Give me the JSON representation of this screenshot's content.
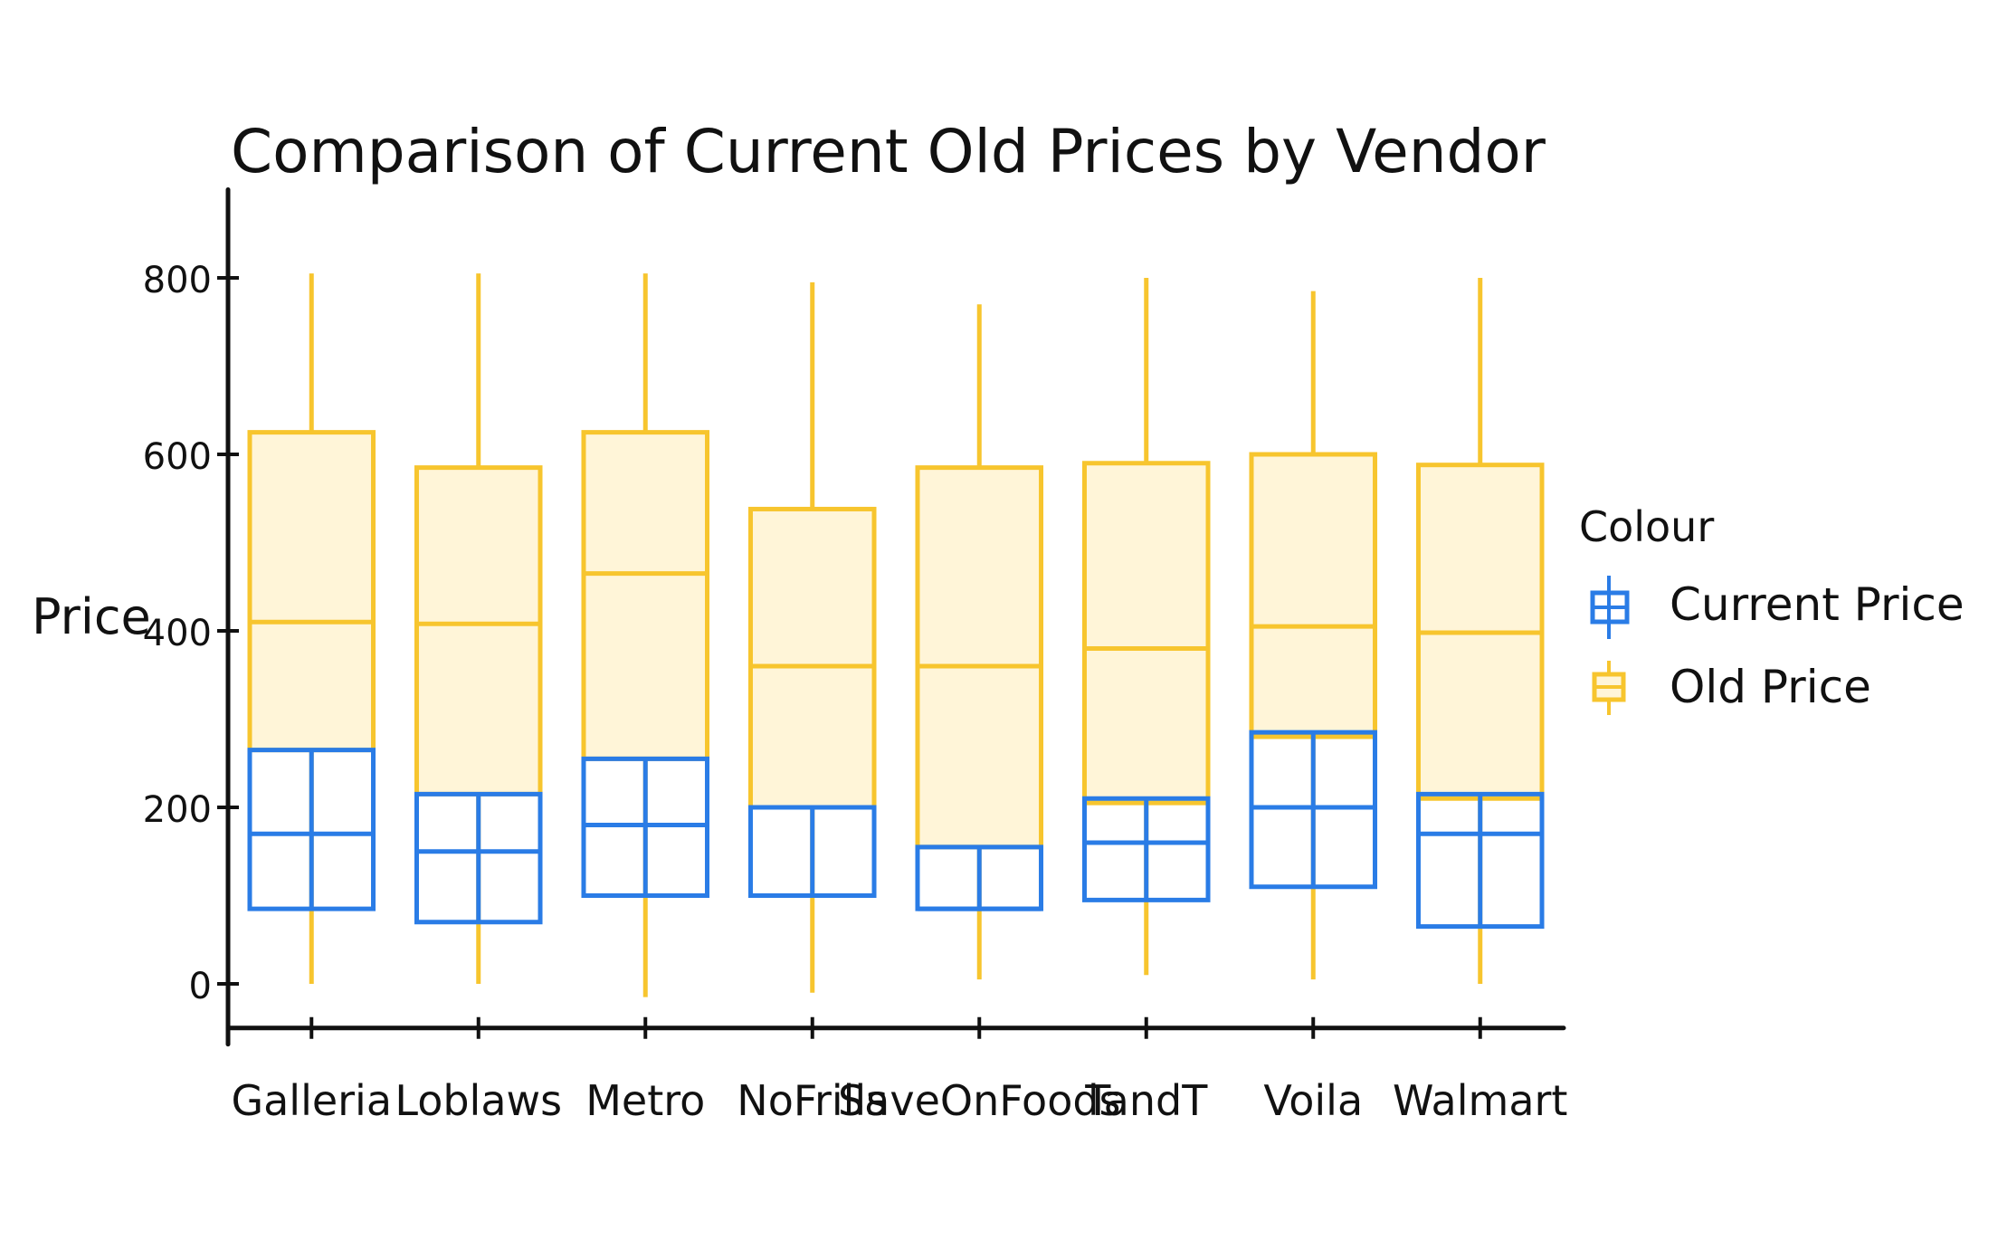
{
  "chart_data": {
    "type": "boxplot",
    "title": "Comparison of Current Old Prices by Vendor",
    "xlabel": "",
    "ylabel": "Price",
    "ylim": [
      -50,
      900
    ],
    "yticks": [
      0,
      200,
      400,
      600,
      800
    ],
    "categories": [
      "Galleria",
      "Loblaws",
      "Metro",
      "NoFrills",
      "SaveOnFoods",
      "TandT",
      "Voila",
      "Walmart"
    ],
    "legend": {
      "title": "Colour",
      "position": "right",
      "entries": [
        "Current Price",
        "Old Price"
      ]
    },
    "series": [
      {
        "name": "Old Price",
        "color": "#F7C52E",
        "fill": "#FFF5D8",
        "boxes": [
          {
            "min": 0,
            "q1": 265,
            "median": 410,
            "q3": 625,
            "max": 805
          },
          {
            "min": 0,
            "q1": 215,
            "median": 408,
            "q3": 585,
            "max": 805
          },
          {
            "min": -15,
            "q1": 255,
            "median": 465,
            "q3": 625,
            "max": 805
          },
          {
            "min": -10,
            "q1": 200,
            "median": 360,
            "q3": 538,
            "max": 795
          },
          {
            "min": 5,
            "q1": 155,
            "median": 360,
            "q3": 585,
            "max": 770
          },
          {
            "min": 10,
            "q1": 205,
            "median": 380,
            "q3": 590,
            "max": 800
          },
          {
            "min": 5,
            "q1": 280,
            "median": 405,
            "q3": 600,
            "max": 785
          },
          {
            "min": 0,
            "q1": 210,
            "median": 398,
            "q3": 588,
            "max": 800
          }
        ]
      },
      {
        "name": "Current Price",
        "color": "#2A7CE6",
        "boxes": [
          {
            "min": 85,
            "q1": 85,
            "median": 170,
            "q3": 265,
            "max": 265
          },
          {
            "min": 70,
            "q1": 70,
            "median": 150,
            "q3": 215,
            "max": 215
          },
          {
            "min": 100,
            "q1": 100,
            "median": 180,
            "q3": 255,
            "max": 255
          },
          {
            "min": 100,
            "q1": 100,
            "median": 100,
            "q3": 200,
            "max": 200
          },
          {
            "min": 85,
            "q1": 85,
            "median": 85,
            "q3": 155,
            "max": 155
          },
          {
            "min": 95,
            "q1": 95,
            "median": 160,
            "q3": 210,
            "max": 210
          },
          {
            "min": 110,
            "q1": 110,
            "median": 200,
            "q3": 285,
            "max": 285
          },
          {
            "min": 65,
            "q1": 65,
            "median": 170,
            "q3": 215,
            "max": 215
          }
        ]
      }
    ]
  }
}
